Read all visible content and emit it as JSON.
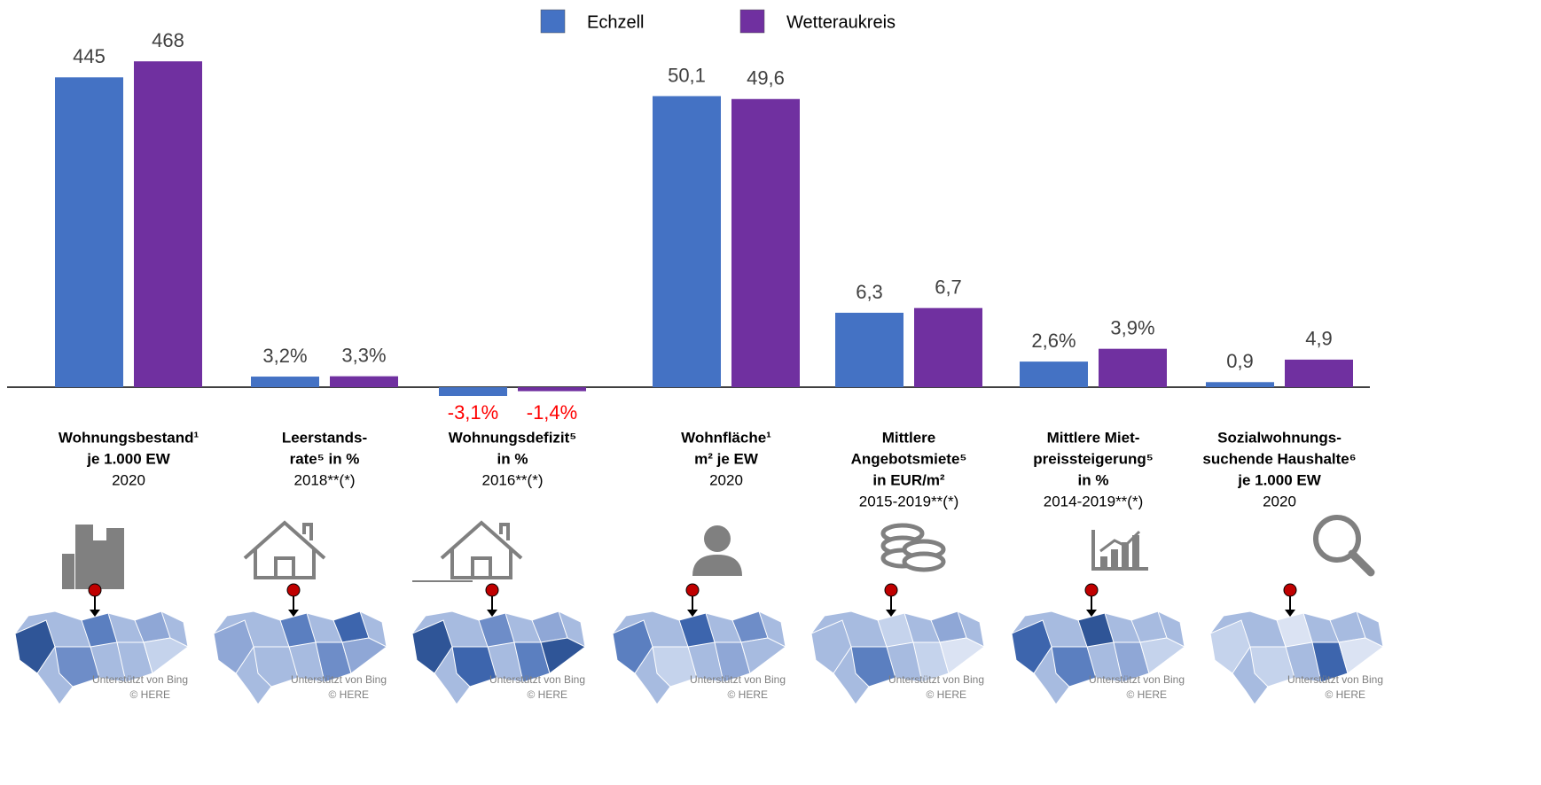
{
  "chart_data": {
    "type": "bar",
    "series": [
      {
        "name": "Echzell",
        "color": "#4472c4",
        "values": [
          445,
          3.2,
          -3.1,
          50.1,
          6.3,
          2.6,
          0.9
        ],
        "value_labels": [
          "445",
          "3,2%",
          "-3,1%",
          "50,1",
          "6,3",
          "2,6%",
          "0,9"
        ]
      },
      {
        "name": "Wetteraukreis",
        "color": "#7030a0",
        "values": [
          468,
          3.3,
          -1.4,
          49.6,
          6.7,
          3.9,
          4.9
        ],
        "value_labels": [
          "468",
          "3,3%",
          "-1,4%",
          "49,6",
          "6,7",
          "3,9%",
          "4,9"
        ]
      }
    ],
    "categories": [
      {
        "label": [
          "Wohnungsbestand¹",
          "je 1.000 EW"
        ],
        "period": "2020",
        "ylim": [
          0,
          509
        ]
      },
      {
        "label": [
          "Leerstands-",
          "rate⁵ in %"
        ],
        "period": "2018**(*)",
        "ylim": [
          0,
          107
        ]
      },
      {
        "label": [
          "Wohnungsdefizit⁵",
          "in %"
        ],
        "period": "2016**(*)",
        "ylim": [
          0,
          124
        ]
      },
      {
        "label": [
          "Wohnfläche¹",
          "m² je EW"
        ],
        "period": "2020",
        "ylim": [
          0,
          61
        ]
      },
      {
        "label": [
          "Mittlere",
          "Angebotsmiete⁵",
          "in EUR/m²"
        ],
        "period": "2015-2019**(*)",
        "ylim": [
          0,
          30
        ]
      },
      {
        "label": [
          "Mittlere Miet-",
          "preissteigerung⁵",
          "in %"
        ],
        "period": "2014-2019**(*)",
        "ylim": [
          0,
          36
        ]
      },
      {
        "label": [
          "Sozialwohnungs-",
          "suchende Haushalte⁶",
          "je 1.000 EW"
        ],
        "period": "2020",
        "ylim": [
          0,
          63
        ]
      }
    ],
    "negative_label_color": "#ff0000",
    "legend": "top"
  },
  "map_credit": [
    "Unterstützt von Bing",
    "© HERE"
  ]
}
